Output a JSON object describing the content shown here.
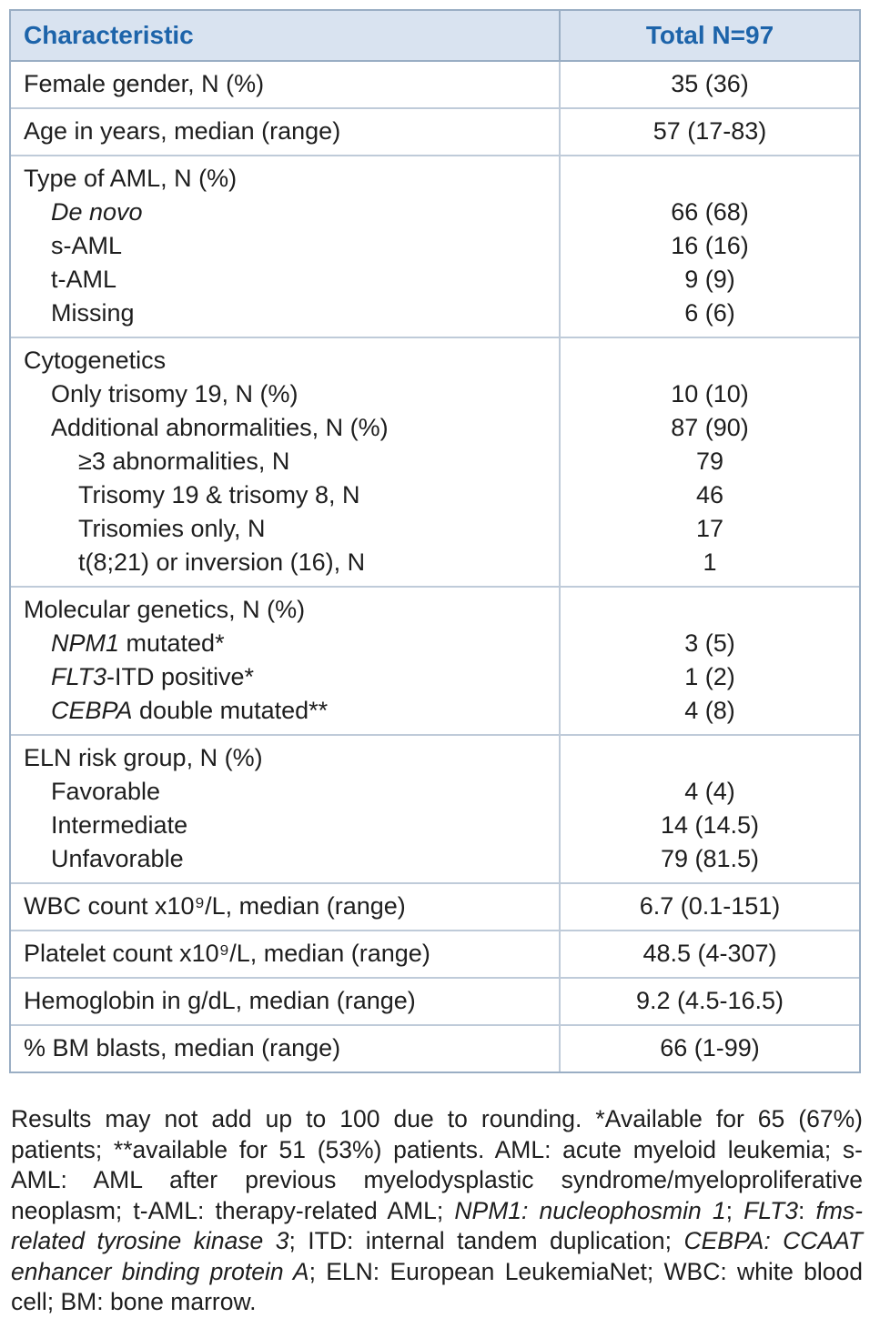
{
  "table": {
    "header": {
      "col1": "Characteristic",
      "col2": "Total N=97"
    },
    "blocks": [
      {
        "lines": [
          {
            "label": [
              {
                "t": "Female gender, N (%)"
              }
            ],
            "indent": 0,
            "value": "35 (36)"
          }
        ]
      },
      {
        "lines": [
          {
            "label": [
              {
                "t": "Age in years, median (range)"
              }
            ],
            "indent": 0,
            "value": "57 (17-83)"
          }
        ]
      },
      {
        "lines": [
          {
            "label": [
              {
                "t": "Type of AML, N (%)"
              }
            ],
            "indent": 0,
            "value": ""
          },
          {
            "label": [
              {
                "t": "De novo",
                "i": true
              }
            ],
            "indent": 1,
            "value": "66 (68)"
          },
          {
            "label": [
              {
                "t": "s-AML"
              }
            ],
            "indent": 1,
            "value": "16 (16)"
          },
          {
            "label": [
              {
                "t": "t-AML"
              }
            ],
            "indent": 1,
            "value": "9 (9)"
          },
          {
            "label": [
              {
                "t": "Missing"
              }
            ],
            "indent": 1,
            "value": "6 (6)"
          }
        ]
      },
      {
        "lines": [
          {
            "label": [
              {
                "t": "Cytogenetics"
              }
            ],
            "indent": 0,
            "value": ""
          },
          {
            "label": [
              {
                "t": "Only trisomy 19, N (%)"
              }
            ],
            "indent": 1,
            "value": "10 (10)"
          },
          {
            "label": [
              {
                "t": "Additional abnormalities, N (%)"
              }
            ],
            "indent": 1,
            "value": "87 (90)"
          },
          {
            "label": [
              {
                "t": "≥3 abnormalities, N"
              }
            ],
            "indent": 2,
            "value": "79"
          },
          {
            "label": [
              {
                "t": "Trisomy 19 & trisomy 8, N"
              }
            ],
            "indent": 2,
            "value": "46"
          },
          {
            "label": [
              {
                "t": "Trisomies only, N"
              }
            ],
            "indent": 2,
            "value": "17"
          },
          {
            "label": [
              {
                "t": "t(8;21) or inversion (16), N"
              }
            ],
            "indent": 2,
            "value": "1"
          }
        ]
      },
      {
        "lines": [
          {
            "label": [
              {
                "t": "Molecular genetics, N (%)"
              }
            ],
            "indent": 0,
            "value": ""
          },
          {
            "label": [
              {
                "t": "NPM1",
                "i": true
              },
              {
                "t": " mutated*"
              }
            ],
            "indent": 1,
            "value": "3 (5)"
          },
          {
            "label": [
              {
                "t": "FLT3",
                "i": true
              },
              {
                "t": "-ITD positive*"
              }
            ],
            "indent": 1,
            "value": "1 (2)"
          },
          {
            "label": [
              {
                "t": "CEBPA",
                "i": true
              },
              {
                "t": " double mutated**"
              }
            ],
            "indent": 1,
            "value": "4 (8)"
          }
        ]
      },
      {
        "lines": [
          {
            "label": [
              {
                "t": "ELN risk group, N (%)"
              }
            ],
            "indent": 0,
            "value": ""
          },
          {
            "label": [
              {
                "t": "Favorable"
              }
            ],
            "indent": 1,
            "value": "4 (4)"
          },
          {
            "label": [
              {
                "t": "Intermediate"
              }
            ],
            "indent": 1,
            "value": "14 (14.5)"
          },
          {
            "label": [
              {
                "t": "Unfavorable"
              }
            ],
            "indent": 1,
            "value": "79 (81.5)"
          }
        ]
      },
      {
        "lines": [
          {
            "label": [
              {
                "t": "WBC count x10⁹/L, median (range)"
              }
            ],
            "indent": 0,
            "value": "6.7 (0.1-151)"
          }
        ]
      },
      {
        "lines": [
          {
            "label": [
              {
                "t": "Platelet count x10⁹/L, median (range)"
              }
            ],
            "indent": 0,
            "value": "48.5 (4-307)"
          }
        ]
      },
      {
        "lines": [
          {
            "label": [
              {
                "t": "Hemoglobin in g/dL, median (range)"
              }
            ],
            "indent": 0,
            "value": "9.2 (4.5-16.5)"
          }
        ]
      },
      {
        "lines": [
          {
            "label": [
              {
                "t": "% BM blasts, median (range)"
              }
            ],
            "indent": 0,
            "value": "66 (1-99)"
          }
        ]
      }
    ]
  },
  "footnote": [
    {
      "t": "Results may not add up to 100 due to rounding. *Available for 65 (67%) patients; **available for 51 (53%) patients. AML: acute myeloid leukemia; s-AML: AML after previous myelodysplastic syndrome/myeloproliferative neoplasm; t-AML: therapy-related AML; "
    },
    {
      "t": "NPM1: nucleophosmin 1",
      "i": true
    },
    {
      "t": "; "
    },
    {
      "t": "FLT3",
      "i": true
    },
    {
      "t": ": "
    },
    {
      "t": "fms-related tyrosine kinase 3",
      "i": true
    },
    {
      "t": "; ITD: internal tandem duplication; "
    },
    {
      "t": "CEBPA: CCAAT enhancer binding protein A",
      "i": true
    },
    {
      "t": "; ELN: European LeukemiaNet; WBC: white blood cell; BM: bone marrow."
    }
  ],
  "colors": {
    "header_bg": "#d9e3f0",
    "header_text": "#1d64aa",
    "outer_border": "#9aaec4",
    "row_border": "#bfcbd9",
    "body_text": "#1e1e1e"
  }
}
